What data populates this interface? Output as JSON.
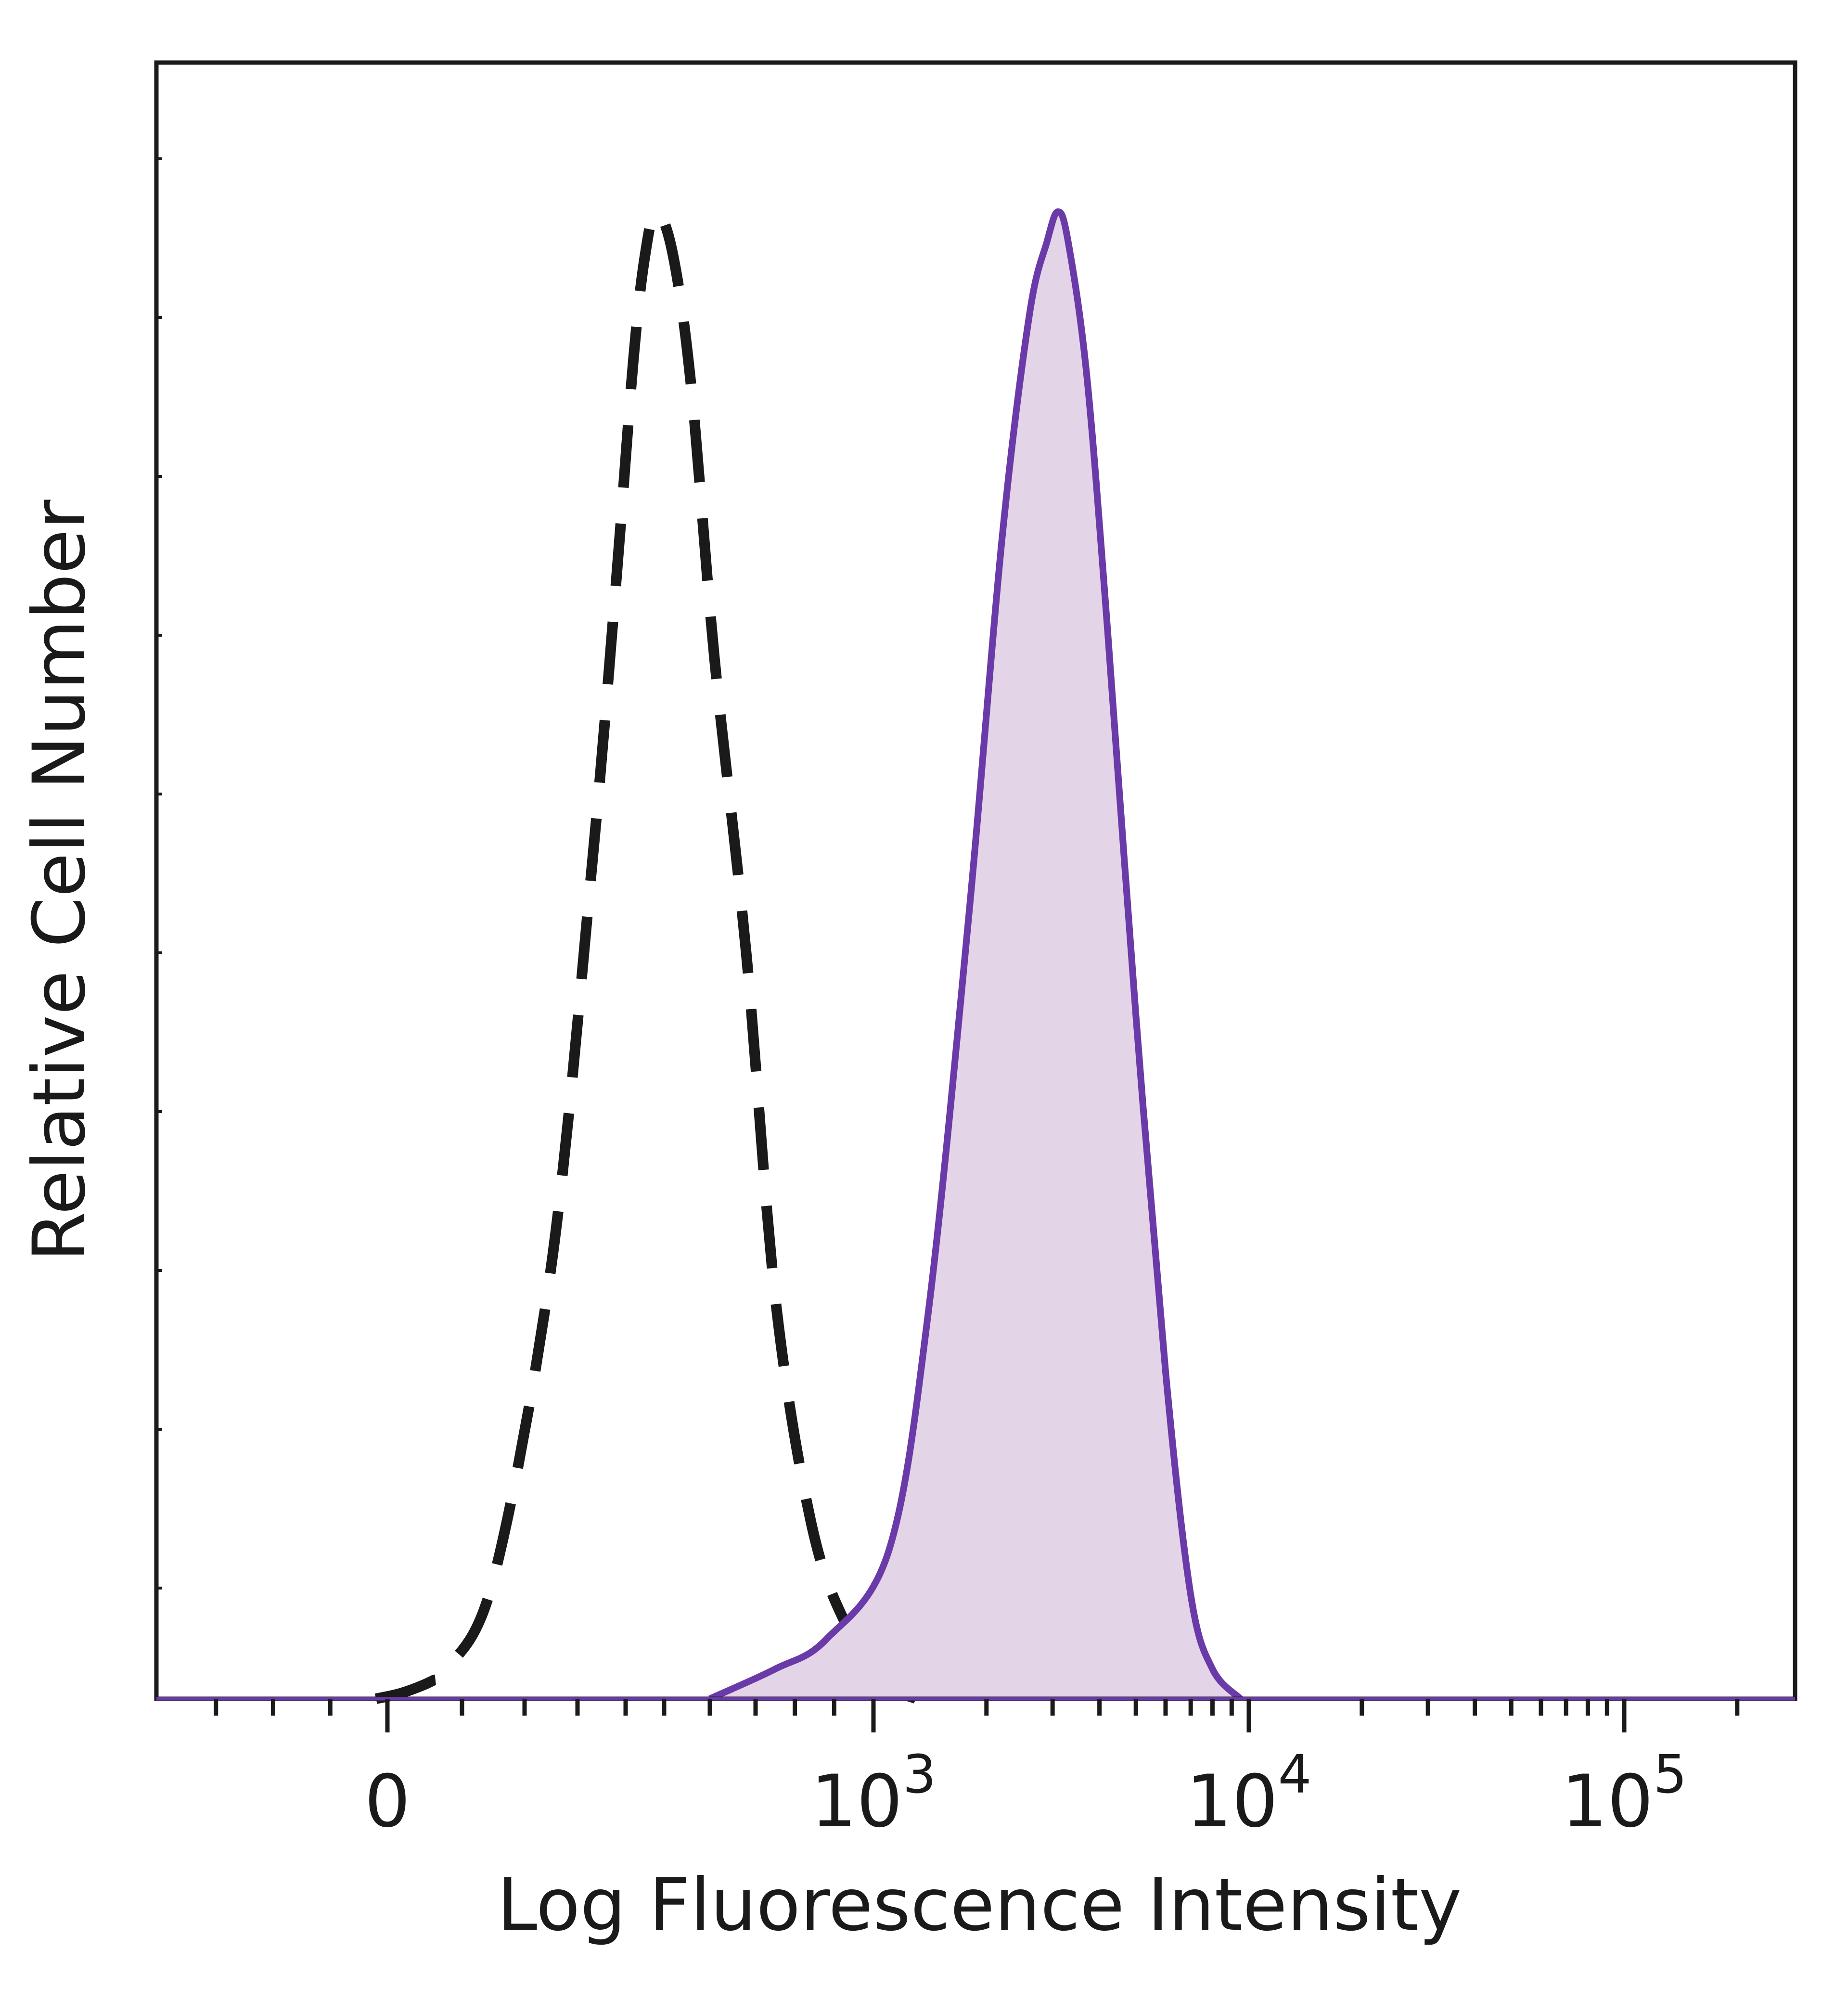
{
  "chart_data": {
    "type": "area",
    "title": "",
    "xlabel": "Log Fluorescence Intensity",
    "ylabel": "Relative Cell Number",
    "x_scale": "biexponential",
    "xlim": [
      -400,
      200000
    ],
    "ylim": [
      0,
      1.1
    ],
    "x_ticks": [
      {
        "value": 0,
        "label": "0",
        "exp": ""
      },
      {
        "value": 1000,
        "label": "10",
        "exp": "3"
      },
      {
        "value": 10000,
        "label": "10",
        "exp": "4"
      },
      {
        "value": 100000,
        "label": "10",
        "exp": "5"
      }
    ],
    "grid": false,
    "series": [
      {
        "style": "dashed",
        "color": "#1a1a1a",
        "fill": "none",
        "points": [
          [
            -20,
            0.0
          ],
          [
            20,
            0.004
          ],
          [
            60,
            0.012
          ],
          [
            80,
            0.02
          ],
          [
            150,
            0.08
          ],
          [
            250,
            0.29
          ],
          [
            330,
            0.56
          ],
          [
            380,
            0.75
          ],
          [
            420,
            0.9
          ],
          [
            450,
            0.97
          ],
          [
            480,
            1.0
          ],
          [
            520,
            0.97
          ],
          [
            560,
            0.88
          ],
          [
            610,
            0.7
          ],
          [
            680,
            0.5
          ],
          [
            750,
            0.27
          ],
          [
            840,
            0.12
          ],
          [
            930,
            0.05
          ],
          [
            1100,
            0.01
          ],
          [
            1300,
            0.0
          ]
        ]
      },
      {
        "style": "solid",
        "color": "#6a3aa8",
        "fill": "#e3d4e8",
        "points": [
          [
            600,
            0.0
          ],
          [
            750,
            0.02
          ],
          [
            880,
            0.04
          ],
          [
            1100,
            0.1
          ],
          [
            1400,
            0.26
          ],
          [
            1800,
            0.53
          ],
          [
            2200,
            0.78
          ],
          [
            2600,
            0.93
          ],
          [
            2900,
            0.98
          ],
          [
            3100,
            1.0
          ],
          [
            3300,
            0.98
          ],
          [
            3700,
            0.89
          ],
          [
            4200,
            0.72
          ],
          [
            5000,
            0.46
          ],
          [
            6000,
            0.22
          ],
          [
            7000,
            0.07
          ],
          [
            8000,
            0.02
          ],
          [
            9500,
            0.0
          ]
        ]
      }
    ]
  }
}
